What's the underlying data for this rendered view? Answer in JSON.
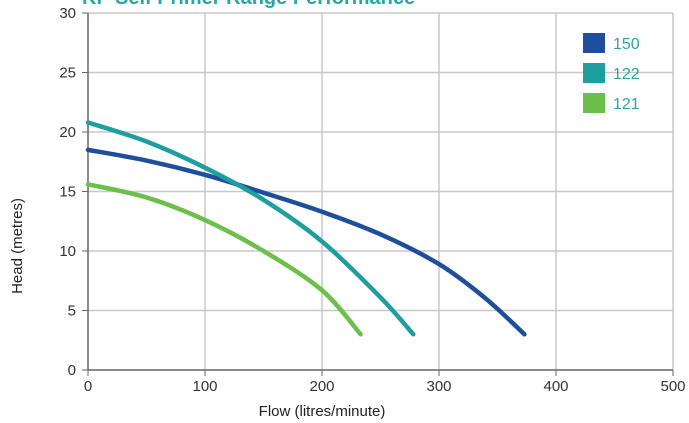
{
  "chart_data": {
    "type": "line",
    "title": "KP Self Primer Range Performance",
    "xlabel": "Flow (litres/minute)",
    "ylabel": "Head (metres)",
    "xlim": [
      0,
      500
    ],
    "ylim": [
      0,
      30
    ],
    "x_ticks": [
      "0",
      "100",
      "200",
      "300",
      "400",
      "500"
    ],
    "y_ticks": [
      "0",
      "5",
      "10",
      "15",
      "20",
      "25",
      "30"
    ],
    "grid": true,
    "legend_position": "top-right",
    "colors": {
      "title": "#2aa6a6",
      "grid": "#c8c8c8",
      "axis": "#666666",
      "legend_text": "#2aa6a6"
    },
    "series": [
      {
        "name": "150",
        "color": "#1f4e9c",
        "points": [
          [
            0,
            18.5
          ],
          [
            50,
            17.6
          ],
          [
            100,
            16.4
          ],
          [
            150,
            14.9
          ],
          [
            200,
            13.3
          ],
          [
            250,
            11.4
          ],
          [
            300,
            8.9
          ],
          [
            340,
            6.0
          ],
          [
            373,
            3.0
          ]
        ]
      },
      {
        "name": "122",
        "color": "#1e9e9e",
        "points": [
          [
            0,
            20.8
          ],
          [
            50,
            19.2
          ],
          [
            100,
            17.0
          ],
          [
            150,
            14.3
          ],
          [
            200,
            10.8
          ],
          [
            250,
            6.1
          ],
          [
            278,
            3.0
          ]
        ]
      },
      {
        "name": "121",
        "color": "#6bbf4a",
        "points": [
          [
            0,
            15.6
          ],
          [
            50,
            14.5
          ],
          [
            100,
            12.6
          ],
          [
            150,
            10.0
          ],
          [
            200,
            6.7
          ],
          [
            233,
            3.0
          ]
        ]
      }
    ]
  }
}
